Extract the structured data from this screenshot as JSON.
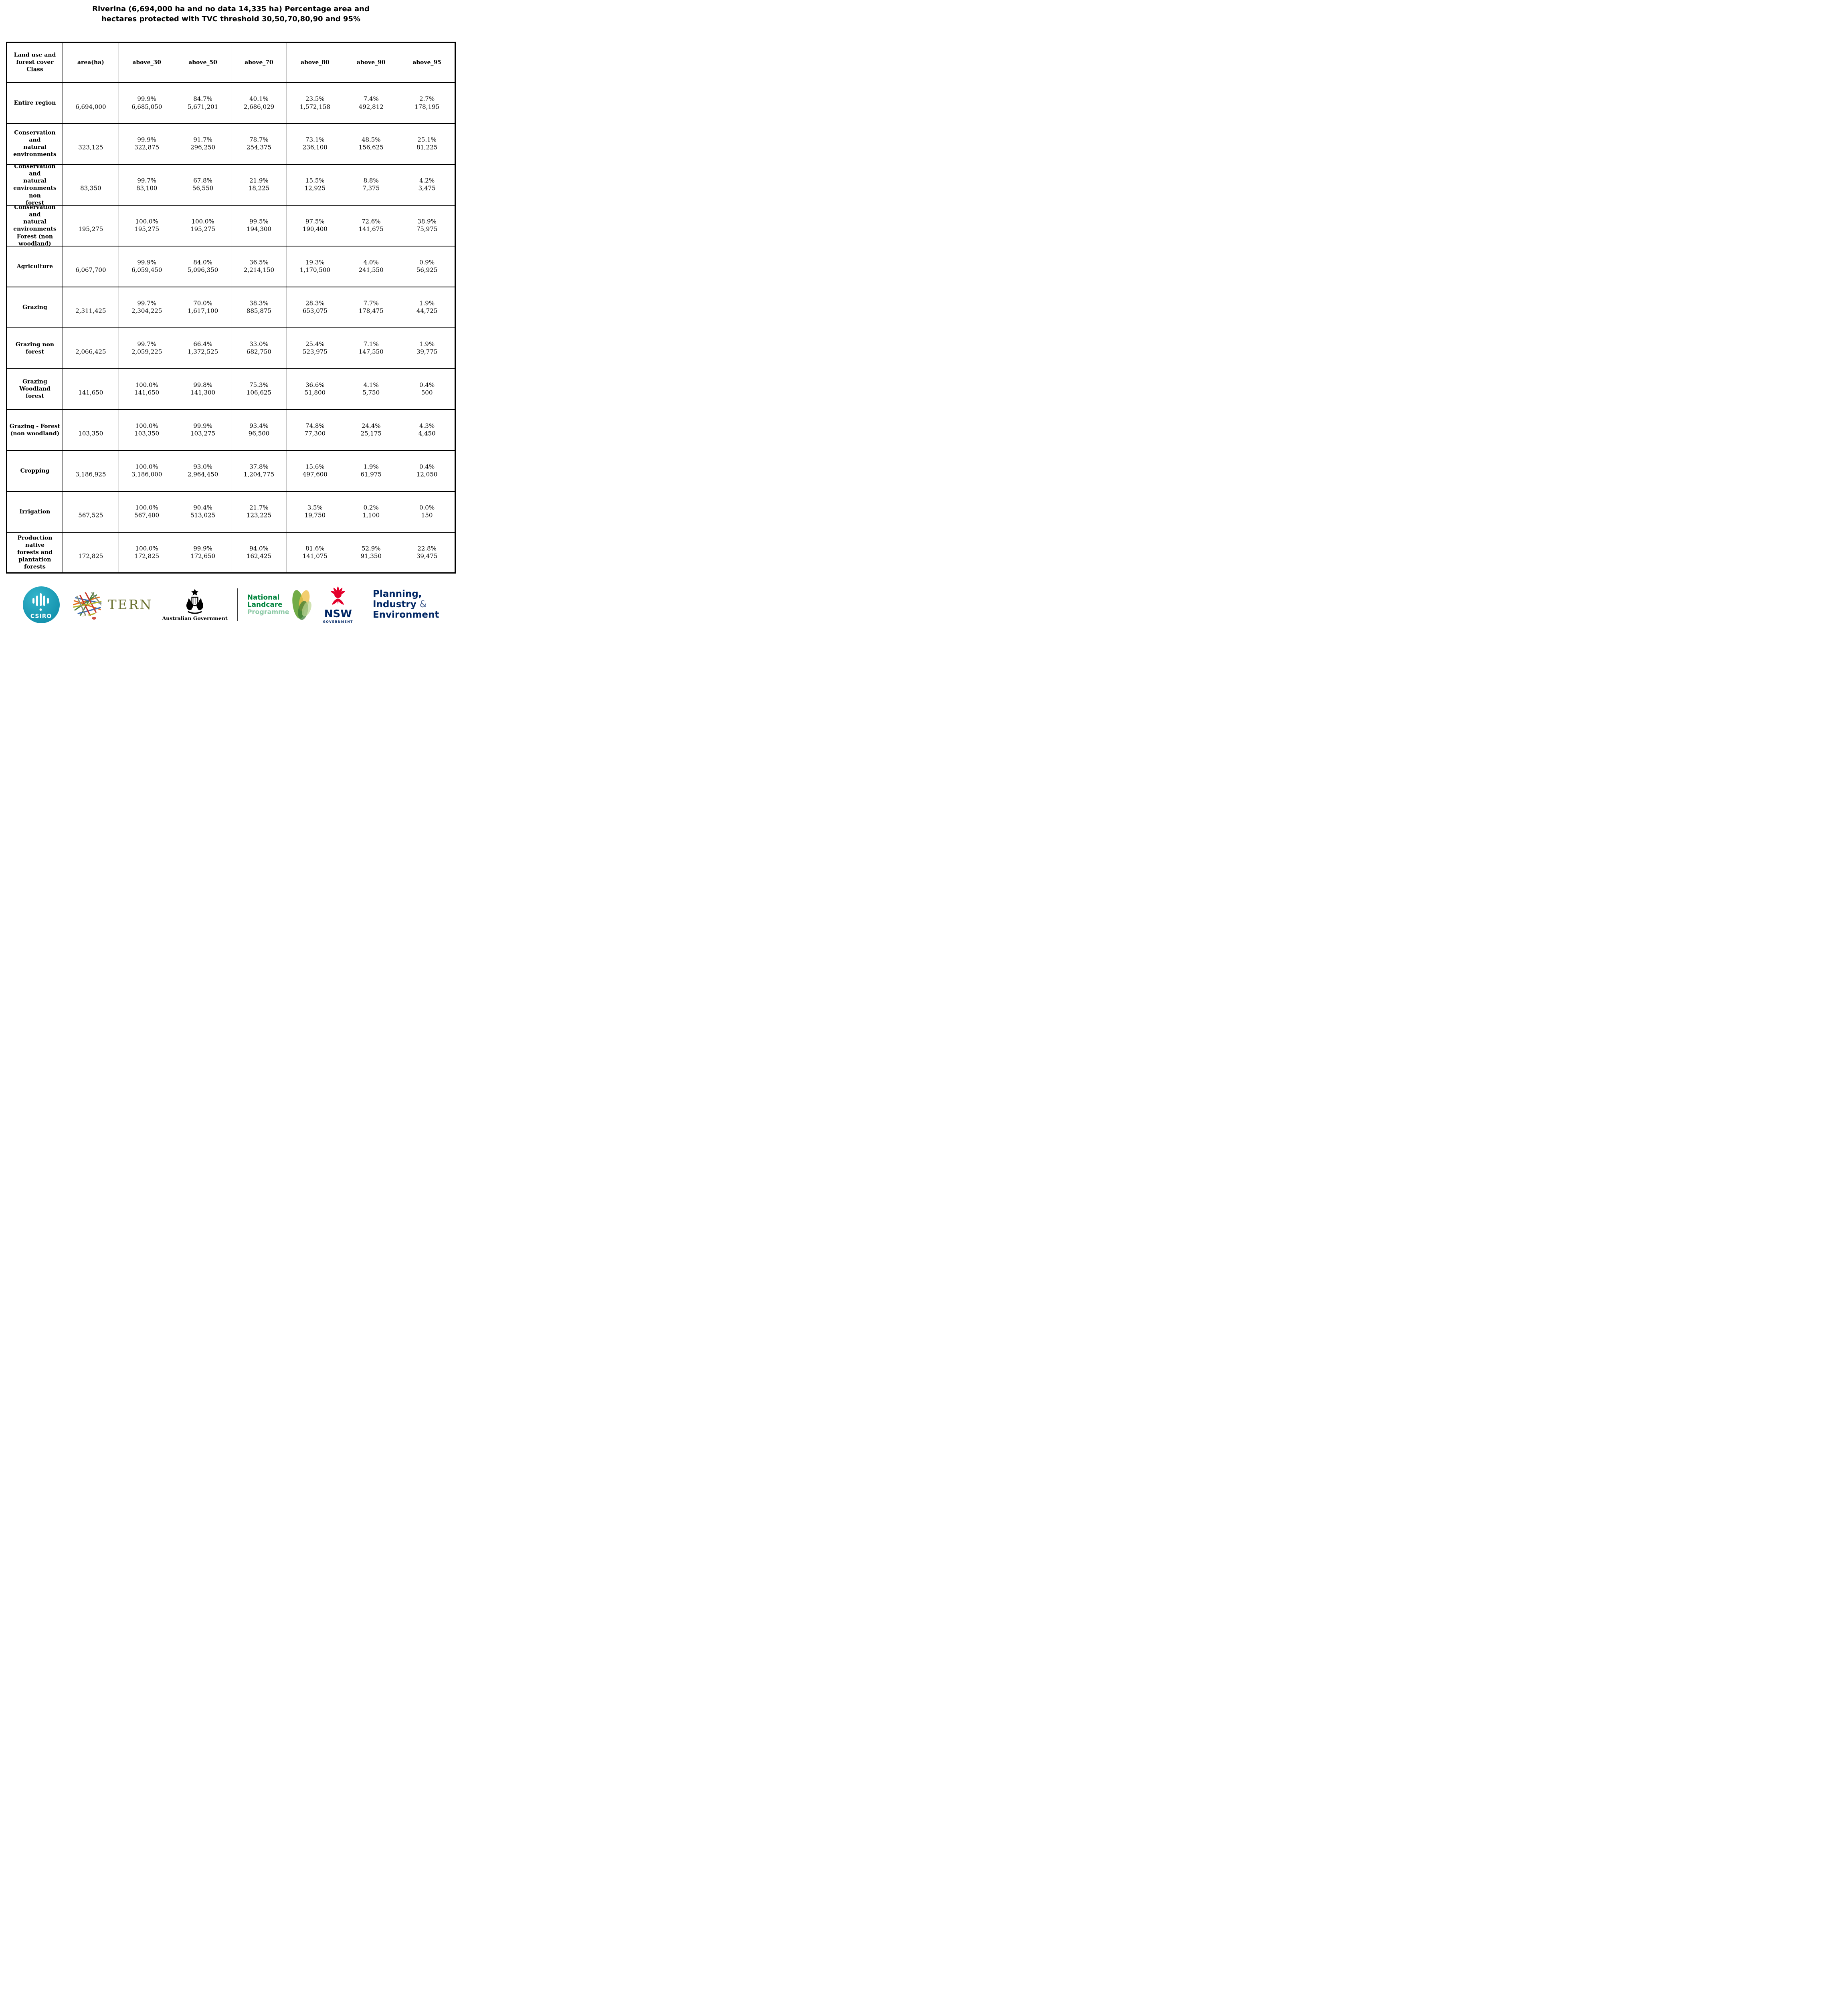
{
  "title": {
    "line1": "Riverina (6,694,000 ha and no data 14,335 ha) Percentage area and",
    "line2": "hectares protected with TVC threshold 30,50,70,80,90 and 95%"
  },
  "table": {
    "columns": [
      {
        "key": "class",
        "label": "Land use and\nforest cover\nClass"
      },
      {
        "key": "area_ha",
        "label": "area(ha)"
      },
      {
        "key": "above_30",
        "label": "above_30"
      },
      {
        "key": "above_50",
        "label": "above_50"
      },
      {
        "key": "above_70",
        "label": "above_70"
      },
      {
        "key": "above_80",
        "label": "above_80"
      },
      {
        "key": "above_90",
        "label": "above_90"
      },
      {
        "key": "above_95",
        "label": "above_95"
      }
    ],
    "rows": [
      {
        "label": "Entire region",
        "area": "6,694,000",
        "values": [
          [
            "99.9%",
            "6,685,050"
          ],
          [
            "84.7%",
            "5,671,201"
          ],
          [
            "40.1%",
            "2,686,029"
          ],
          [
            "23.5%",
            "1,572,158"
          ],
          [
            "7.4%",
            "492,812"
          ],
          [
            "2.7%",
            "178,195"
          ]
        ]
      },
      {
        "label": "Conservation and\nnatural\nenvironments",
        "area": "323,125",
        "values": [
          [
            "99.9%",
            "322,875"
          ],
          [
            "91.7%",
            "296,250"
          ],
          [
            "78.7%",
            "254,375"
          ],
          [
            "73.1%",
            "236,100"
          ],
          [
            "48.5%",
            "156,625"
          ],
          [
            "25.1%",
            "81,225"
          ]
        ]
      },
      {
        "label": "Conservation and\nnatural\nenvironments non\nforest",
        "area": "83,350",
        "values": [
          [
            "99.7%",
            "83,100"
          ],
          [
            "67.8%",
            "56,550"
          ],
          [
            "21.9%",
            "18,225"
          ],
          [
            "15.5%",
            "12,925"
          ],
          [
            "8.8%",
            "7,375"
          ],
          [
            "4.2%",
            "3,475"
          ]
        ]
      },
      {
        "label": "Conservation and\nnatural\nenvironments\nForest (non\nwoodland)",
        "area": "195,275",
        "values": [
          [
            "100.0%",
            "195,275"
          ],
          [
            "100.0%",
            "195,275"
          ],
          [
            "99.5%",
            "194,300"
          ],
          [
            "97.5%",
            "190,400"
          ],
          [
            "72.6%",
            "141,675"
          ],
          [
            "38.9%",
            "75,975"
          ]
        ]
      },
      {
        "label": "Agriculture",
        "area": "6,067,700",
        "values": [
          [
            "99.9%",
            "6,059,450"
          ],
          [
            "84.0%",
            "5,096,350"
          ],
          [
            "36.5%",
            "2,214,150"
          ],
          [
            "19.3%",
            "1,170,500"
          ],
          [
            "4.0%",
            "241,550"
          ],
          [
            "0.9%",
            "56,925"
          ]
        ]
      },
      {
        "label": "Grazing",
        "area": "2,311,425",
        "values": [
          [
            "99.7%",
            "2,304,225"
          ],
          [
            "70.0%",
            "1,617,100"
          ],
          [
            "38.3%",
            "885,875"
          ],
          [
            "28.3%",
            "653,075"
          ],
          [
            "7.7%",
            "178,475"
          ],
          [
            "1.9%",
            "44,725"
          ]
        ]
      },
      {
        "label": "Grazing non\nforest",
        "area": "2,066,425",
        "values": [
          [
            "99.7%",
            "2,059,225"
          ],
          [
            "66.4%",
            "1,372,525"
          ],
          [
            "33.0%",
            "682,750"
          ],
          [
            "25.4%",
            "523,975"
          ],
          [
            "7.1%",
            "147,550"
          ],
          [
            "1.9%",
            "39,775"
          ]
        ]
      },
      {
        "label": "Grazing Woodland\nforest",
        "area": "141,650",
        "values": [
          [
            "100.0%",
            "141,650"
          ],
          [
            "99.8%",
            "141,300"
          ],
          [
            "75.3%",
            "106,625"
          ],
          [
            "36.6%",
            "51,800"
          ],
          [
            "4.1%",
            "5,750"
          ],
          [
            "0.4%",
            "500"
          ]
        ]
      },
      {
        "label": "Grazing - Forest\n(non woodland)",
        "area": "103,350",
        "values": [
          [
            "100.0%",
            "103,350"
          ],
          [
            "99.9%",
            "103,275"
          ],
          [
            "93.4%",
            "96,500"
          ],
          [
            "74.8%",
            "77,300"
          ],
          [
            "24.4%",
            "25,175"
          ],
          [
            "4.3%",
            "4,450"
          ]
        ]
      },
      {
        "label": "Cropping",
        "area": "3,186,925",
        "values": [
          [
            "100.0%",
            "3,186,000"
          ],
          [
            "93.0%",
            "2,964,450"
          ],
          [
            "37.8%",
            "1,204,775"
          ],
          [
            "15.6%",
            "497,600"
          ],
          [
            "1.9%",
            "61,975"
          ],
          [
            "0.4%",
            "12,050"
          ]
        ]
      },
      {
        "label": "Irrigation",
        "area": "567,525",
        "values": [
          [
            "100.0%",
            "567,400"
          ],
          [
            "90.4%",
            "513,025"
          ],
          [
            "21.7%",
            "123,225"
          ],
          [
            "3.5%",
            "19,750"
          ],
          [
            "0.2%",
            "1,100"
          ],
          [
            "0.0%",
            "150"
          ]
        ]
      },
      {
        "label": "Production native\nforests and\nplantation\nforests",
        "area": "172,825",
        "values": [
          [
            "100.0%",
            "172,825"
          ],
          [
            "99.9%",
            "172,650"
          ],
          [
            "94.0%",
            "162,425"
          ],
          [
            "81.6%",
            "141,075"
          ],
          [
            "52.9%",
            "91,350"
          ],
          [
            "22.8%",
            "39,475"
          ]
        ]
      }
    ]
  },
  "footer": {
    "csiro": {
      "label": "CSIRO"
    },
    "tern": {
      "label": "TERN"
    },
    "ausgov": {
      "label": "Australian Government"
    },
    "landcare": {
      "line1": "National",
      "line2": "Landcare",
      "line3": "Programme"
    },
    "nsw": {
      "label": "NSW",
      "sub": "GOVERNMENT"
    },
    "planning": {
      "line1": "Planning,",
      "line2": "Industry",
      "amp": "&",
      "line3": "Environment"
    }
  },
  "colors": {
    "csiro_teal": "#0e93ad",
    "tern_olive": "#6a7030",
    "landcare_green": "#00843d",
    "landcare_light_green": "#8cc9a6",
    "nsw_red": "#e4002b",
    "gov_navy": "#002664"
  }
}
